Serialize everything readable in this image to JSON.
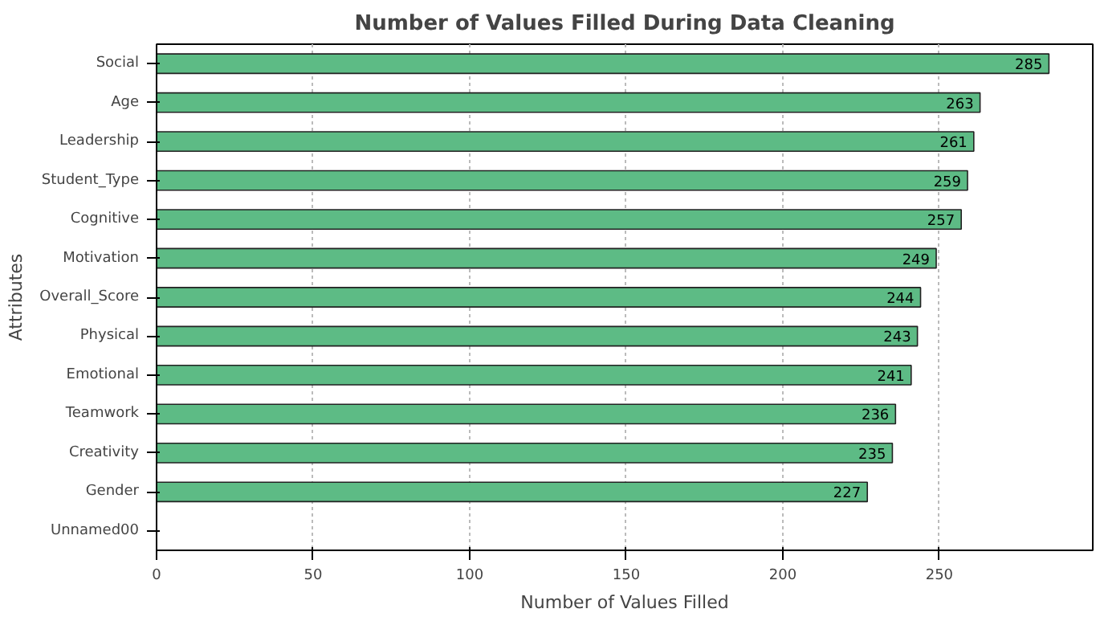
{
  "chart_data": {
    "type": "bar",
    "orientation": "horizontal",
    "title": "Number of Values Filled During Data Cleaning",
    "xlabel": "Number of Values Filled",
    "ylabel": "Attributes",
    "categories": [
      "Social",
      "Age",
      "Leadership",
      "Student_Type",
      "Cognitive",
      "Motivation",
      "Overall_Score",
      "Physical",
      "Emotional",
      "Teamwork",
      "Creativity",
      "Gender",
      "Unnamed00"
    ],
    "values": [
      285,
      263,
      261,
      259,
      257,
      249,
      244,
      243,
      241,
      236,
      235,
      227,
      null
    ],
    "value_labels": [
      "285",
      "263",
      "261",
      "259",
      "257",
      "249",
      "244",
      "243",
      "241",
      "236",
      "235",
      "227",
      null
    ],
    "color": "#5dbb85",
    "xlim": [
      0,
      299
    ],
    "xticks": [
      0,
      50,
      100,
      150,
      200,
      250
    ],
    "grid": "x"
  }
}
